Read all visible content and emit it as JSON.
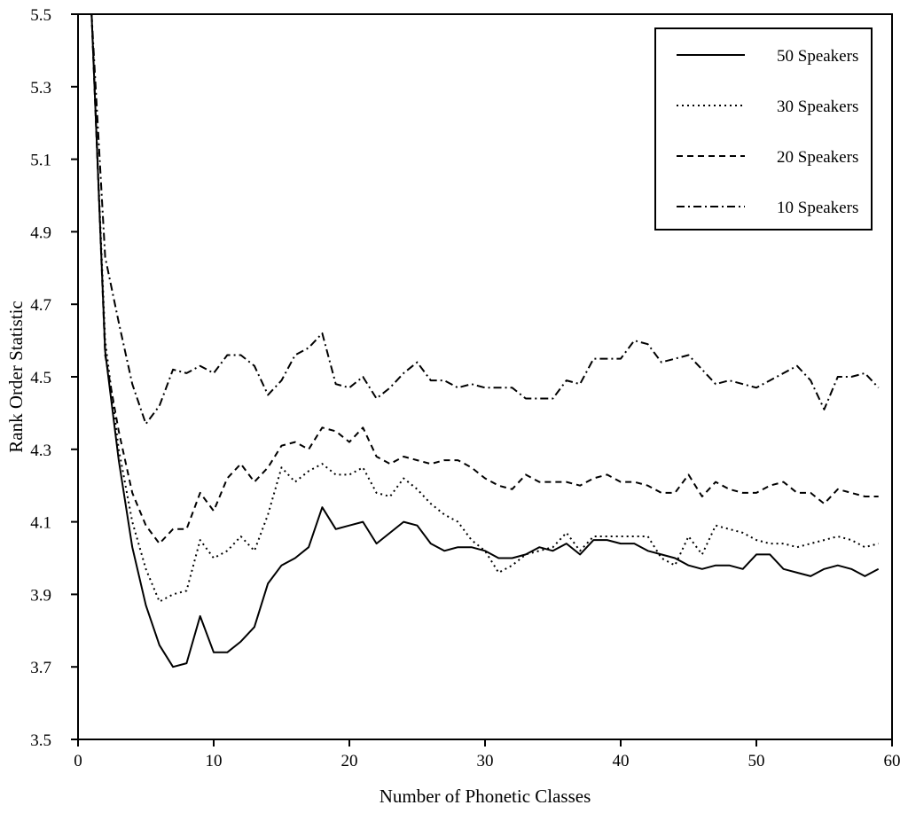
{
  "chart_data": {
    "type": "line",
    "title": "",
    "xlabel": "Number of Phonetic Classes",
    "ylabel": "Rank Order Statistic",
    "xlim": [
      0,
      60
    ],
    "ylim": [
      3.5,
      5.5
    ],
    "xticks": [
      "0",
      "10",
      "20",
      "30",
      "40",
      "50",
      "60"
    ],
    "yticks": [
      "3.5",
      "3.7",
      "3.9",
      "4.1",
      "4.3",
      "4.5",
      "4.7",
      "4.9",
      "5.1",
      "5.3",
      "5.5"
    ],
    "grid": false,
    "legend_position": "top-right",
    "x": [
      1,
      2,
      3,
      4,
      5,
      6,
      7,
      8,
      9,
      10,
      11,
      12,
      13,
      14,
      15,
      16,
      17,
      18,
      19,
      20,
      21,
      22,
      23,
      24,
      25,
      26,
      27,
      28,
      29,
      30,
      31,
      32,
      33,
      34,
      35,
      36,
      37,
      38,
      39,
      40,
      41,
      42,
      43,
      44,
      45,
      46,
      47,
      48,
      49,
      50,
      51,
      52,
      53,
      54,
      55,
      56,
      57,
      58,
      59
    ],
    "series": [
      {
        "name": "50 Speakers",
        "dash": "solid",
        "values": [
          5.5,
          4.57,
          4.27,
          4.03,
          3.87,
          3.76,
          3.7,
          3.71,
          3.84,
          3.74,
          3.74,
          3.77,
          3.81,
          3.93,
          3.98,
          4.0,
          4.03,
          4.14,
          4.08,
          4.09,
          4.1,
          4.04,
          4.07,
          4.1,
          4.09,
          4.04,
          4.02,
          4.03,
          4.03,
          4.02,
          4.0,
          4.0,
          4.01,
          4.03,
          4.02,
          4.04,
          4.01,
          4.05,
          4.05,
          4.04,
          4.04,
          4.02,
          4.01,
          4.0,
          3.98,
          3.97,
          3.98,
          3.98,
          3.97,
          4.01,
          4.01,
          3.97,
          3.96,
          3.95,
          3.97,
          3.98,
          3.97,
          3.95,
          3.97
        ]
      },
      {
        "name": "30 Speakers",
        "dash": "dotted",
        "values": [
          5.5,
          4.6,
          4.3,
          4.1,
          3.97,
          3.88,
          3.9,
          3.91,
          4.05,
          4.0,
          4.02,
          4.06,
          4.02,
          4.12,
          4.25,
          4.21,
          4.24,
          4.26,
          4.23,
          4.23,
          4.25,
          4.18,
          4.17,
          4.22,
          4.19,
          4.15,
          4.12,
          4.1,
          4.05,
          4.02,
          3.96,
          3.98,
          4.01,
          4.02,
          4.03,
          4.07,
          4.02,
          4.06,
          4.06,
          4.06,
          4.06,
          4.06,
          4.0,
          3.98,
          4.06,
          4.01,
          4.09,
          4.08,
          4.07,
          4.05,
          4.04,
          4.04,
          4.03,
          4.04,
          4.05,
          4.06,
          4.05,
          4.03,
          4.04
        ]
      },
      {
        "name": "20 Speakers",
        "dash": "dashed",
        "values": [
          5.5,
          4.56,
          4.35,
          4.18,
          4.09,
          4.04,
          4.08,
          4.08,
          4.18,
          4.13,
          4.22,
          4.26,
          4.21,
          4.25,
          4.31,
          4.32,
          4.3,
          4.36,
          4.35,
          4.32,
          4.36,
          4.28,
          4.26,
          4.28,
          4.27,
          4.26,
          4.27,
          4.27,
          4.25,
          4.22,
          4.2,
          4.19,
          4.23,
          4.21,
          4.21,
          4.21,
          4.2,
          4.22,
          4.23,
          4.21,
          4.21,
          4.2,
          4.18,
          4.18,
          4.23,
          4.17,
          4.21,
          4.19,
          4.18,
          4.18,
          4.2,
          4.21,
          4.18,
          4.18,
          4.15,
          4.19,
          4.18,
          4.17,
          4.17
        ]
      },
      {
        "name": "10 Speakers",
        "dash": "dashdot",
        "values": [
          5.5,
          4.83,
          4.65,
          4.48,
          4.37,
          4.42,
          4.52,
          4.51,
          4.53,
          4.51,
          4.56,
          4.56,
          4.53,
          4.45,
          4.49,
          4.56,
          4.58,
          4.62,
          4.48,
          4.47,
          4.5,
          4.44,
          4.47,
          4.51,
          4.54,
          4.49,
          4.49,
          4.47,
          4.48,
          4.47,
          4.47,
          4.47,
          4.44,
          4.44,
          4.44,
          4.49,
          4.48,
          4.55,
          4.55,
          4.55,
          4.6,
          4.59,
          4.54,
          4.55,
          4.56,
          4.52,
          4.48,
          4.49,
          4.48,
          4.47,
          4.49,
          4.51,
          4.53,
          4.49,
          4.41,
          4.5,
          4.5,
          4.51,
          4.47
        ]
      }
    ]
  }
}
